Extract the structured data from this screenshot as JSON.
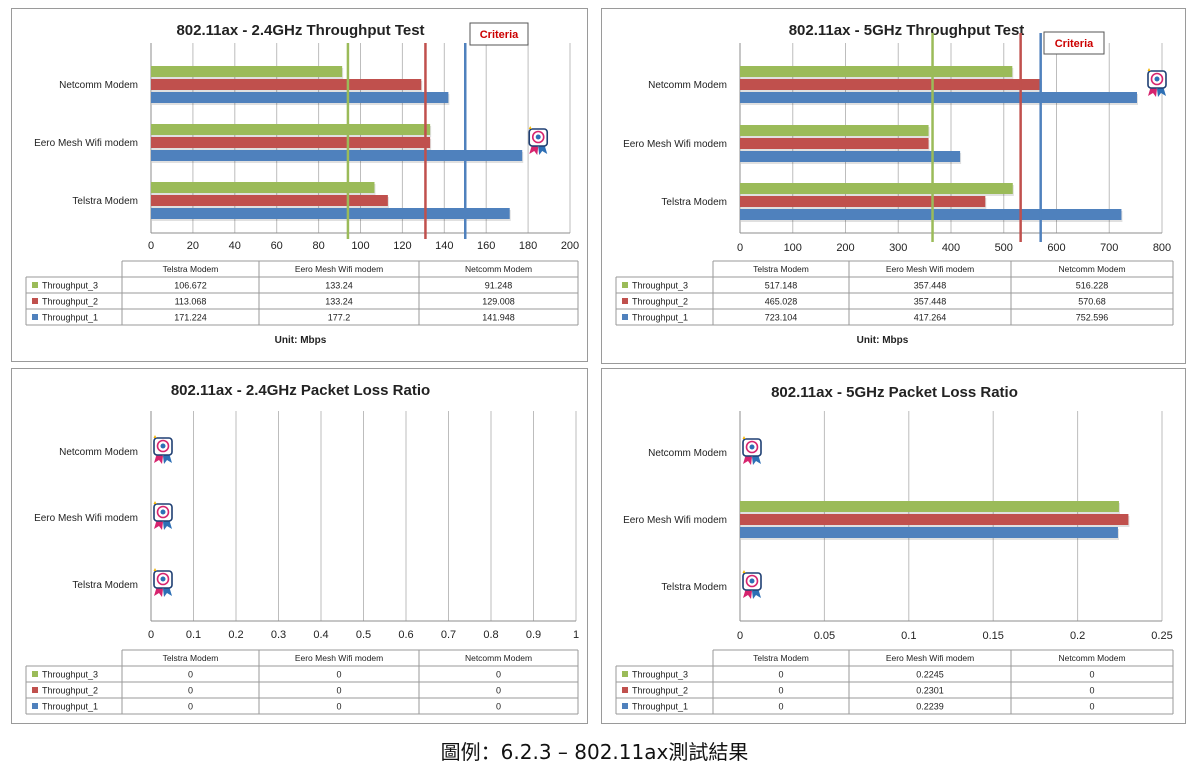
{
  "caption": "圖例：6.2.3 – 802.11ax測試結果",
  "colors": {
    "series_3": "#9bbb59",
    "series_2": "#c0504d",
    "series_1": "#4f81bd",
    "criteria_box": "#cc0000"
  },
  "chart_data": [
    {
      "type": "bar",
      "orientation": "horizontal",
      "title": "802.11ax - 2.4GHz Throughput  Test",
      "categories": [
        "Telstra Modem",
        "Eero Mesh Wifi modem",
        "Netcomm Modem"
      ],
      "series": [
        {
          "name": "Throughput_3",
          "values": [
            106.672,
            133.24,
            91.248
          ],
          "labels": [
            "106.672",
            "133.24",
            "91.248"
          ]
        },
        {
          "name": "Throughput_2",
          "values": [
            113.068,
            133.24,
            129.008
          ],
          "labels": [
            "113.068",
            "133.24",
            "129.008"
          ]
        },
        {
          "name": "Throughput_1",
          "values": [
            171.224,
            177.2,
            141.948
          ],
          "labels": [
            "171.224",
            "177.2",
            "141.948"
          ]
        }
      ],
      "xlim": [
        0,
        200
      ],
      "xticks": [
        "0",
        "20",
        "40",
        "60",
        "80",
        "100",
        "120",
        "140",
        "160",
        "180",
        "200"
      ],
      "criteria_label": "Criteria",
      "reference_lines": [
        94,
        131,
        150
      ],
      "unit": "Unit: Mbps",
      "award_icons": [
        1
      ],
      "grid": true,
      "legend": "data-table"
    },
    {
      "type": "bar",
      "orientation": "horizontal",
      "title": "802.11ax - 5GHz Throughput  Test",
      "categories": [
        "Telstra Modem",
        "Eero Mesh Wifi modem",
        "Netcomm Modem"
      ],
      "series": [
        {
          "name": "Throughput_3",
          "values": [
            517.148,
            357.448,
            516.228
          ],
          "labels": [
            "517.148",
            "357.448",
            "516.228"
          ]
        },
        {
          "name": "Throughput_2",
          "values": [
            465.028,
            357.448,
            570.68
          ],
          "labels": [
            "465.028",
            "357.448",
            "570.68"
          ]
        },
        {
          "name": "Throughput_1",
          "values": [
            723.104,
            417.264,
            752.596
          ],
          "labels": [
            "723.104",
            "417.264",
            "752.596"
          ]
        }
      ],
      "xlim": [
        0,
        800
      ],
      "xticks": [
        "0",
        "100",
        "200",
        "300",
        "400",
        "500",
        "600",
        "700",
        "800"
      ],
      "criteria_label": "Criteria",
      "reference_lines": [
        365,
        532,
        570
      ],
      "unit": "Unit: Mbps",
      "award_icons": [
        2
      ],
      "grid": true,
      "legend": "data-table"
    },
    {
      "type": "bar",
      "orientation": "horizontal",
      "title": "802.11ax - 2.4GHz Packet Loss Ratio",
      "categories": [
        "Telstra Modem",
        "Eero Mesh Wifi modem",
        "Netcomm Modem"
      ],
      "series": [
        {
          "name": "Throughput_3",
          "values": [
            0,
            0,
            0
          ],
          "labels": [
            "0",
            "0",
            "0"
          ]
        },
        {
          "name": "Throughput_2",
          "values": [
            0,
            0,
            0
          ],
          "labels": [
            "0",
            "0",
            "0"
          ]
        },
        {
          "name": "Throughput_1",
          "values": [
            0,
            0,
            0
          ],
          "labels": [
            "0",
            "0",
            "0"
          ]
        }
      ],
      "xlim": [
        0,
        1
      ],
      "xticks": [
        "0",
        "0.1",
        "0.2",
        "0.3",
        "0.4",
        "0.5",
        "0.6",
        "0.7",
        "0.8",
        "0.9",
        "1"
      ],
      "award_icons": [
        0,
        1,
        2
      ],
      "grid": true,
      "legend": "data-table"
    },
    {
      "type": "bar",
      "orientation": "horizontal",
      "title": "802.11ax - 5GHz Packet Loss Ratio",
      "categories": [
        "Telstra Modem",
        "Eero Mesh Wifi modem",
        "Netcomm Modem"
      ],
      "series": [
        {
          "name": "Throughput_3",
          "values": [
            0,
            0.2245,
            0
          ],
          "labels": [
            "0",
            "0.2245",
            "0"
          ]
        },
        {
          "name": "Throughput_2",
          "values": [
            0,
            0.2301,
            0
          ],
          "labels": [
            "0",
            "0.2301",
            "0"
          ]
        },
        {
          "name": "Throughput_1",
          "values": [
            0,
            0.2239,
            0
          ],
          "labels": [
            "0",
            "0.2239",
            "0"
          ]
        }
      ],
      "xlim": [
        0,
        0.25
      ],
      "xticks": [
        "0",
        "0.05",
        "0.1",
        "0.15",
        "0.2",
        "0.25"
      ],
      "award_icons": [
        0,
        2
      ],
      "grid": true,
      "legend": "data-table"
    }
  ]
}
